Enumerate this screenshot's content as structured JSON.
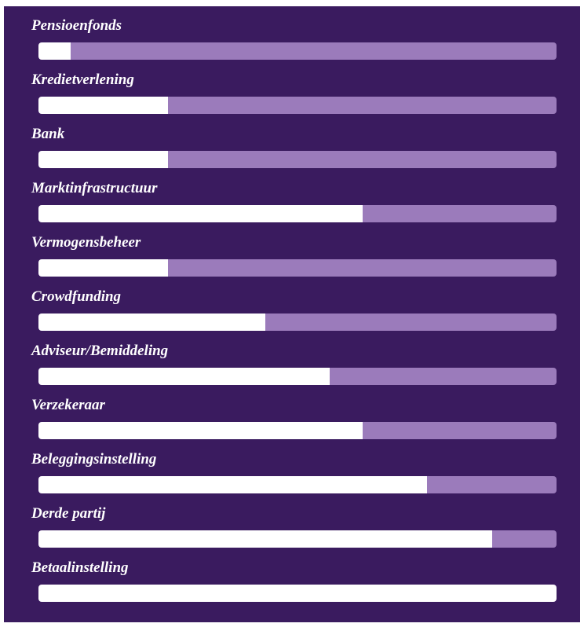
{
  "chart_data": {
    "type": "bar",
    "orientation": "horizontal",
    "title": "",
    "xlabel": "",
    "ylabel": "",
    "xlim": [
      0,
      1
    ],
    "categories": [
      "Pensioenfonds",
      "Kredietverlening",
      "Bank",
      "Marktinfrastructuur",
      "Vermogensbeheer",
      "Crowdfunding",
      "Adviseur/Bemiddeling",
      "Verzekeraar",
      "Beleggingsinstelling",
      "Derde partij",
      "Betaalinstelling"
    ],
    "values": [
      0.0625,
      0.25,
      0.25,
      0.625,
      0.25,
      0.4375,
      0.5625,
      0.625,
      0.75,
      0.875,
      1.0
    ]
  },
  "colors": {
    "background": "#3a1b5f",
    "track": "#9b7bbb",
    "fill": "#ffffff",
    "label": "#ffffff"
  }
}
